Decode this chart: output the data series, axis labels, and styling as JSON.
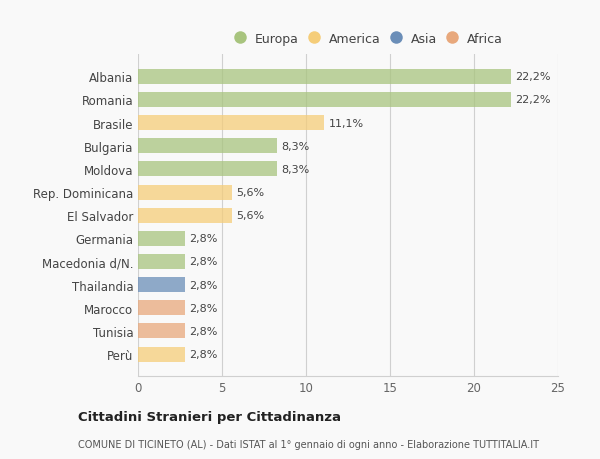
{
  "categories": [
    "Albania",
    "Romania",
    "Brasile",
    "Bulgaria",
    "Moldova",
    "Rep. Dominicana",
    "El Salvador",
    "Germania",
    "Macedonia d/N.",
    "Thailandia",
    "Marocco",
    "Tunisia",
    "Perù"
  ],
  "values": [
    22.2,
    22.2,
    11.1,
    8.3,
    8.3,
    5.6,
    5.6,
    2.8,
    2.8,
    2.8,
    2.8,
    2.8,
    2.8
  ],
  "labels": [
    "22,2%",
    "22,2%",
    "11,1%",
    "8,3%",
    "8,3%",
    "5,6%",
    "5,6%",
    "2,8%",
    "2,8%",
    "2,8%",
    "2,8%",
    "2,8%",
    "2,8%"
  ],
  "colors": [
    "#a8c47e",
    "#a8c47e",
    "#f5cd79",
    "#a8c47e",
    "#a8c47e",
    "#f5cd79",
    "#f5cd79",
    "#a8c47e",
    "#a8c47e",
    "#6b8eb8",
    "#e8a87c",
    "#e8a87c",
    "#f5cd79"
  ],
  "legend_labels": [
    "Europa",
    "America",
    "Asia",
    "Africa"
  ],
  "legend_colors": [
    "#a8c47e",
    "#f5cd79",
    "#6b8eb8",
    "#e8a87c"
  ],
  "xlim": [
    0,
    25
  ],
  "xticks": [
    0,
    5,
    10,
    15,
    20,
    25
  ],
  "title": "Cittadini Stranieri per Cittadinanza",
  "subtitle": "COMUNE DI TICINETO (AL) - Dati ISTAT al 1° gennaio di ogni anno - Elaborazione TUTTITALIA.IT",
  "background_color": "#f9f9f9",
  "bar_height": 0.65,
  "grid_color": "#d0d0d0"
}
